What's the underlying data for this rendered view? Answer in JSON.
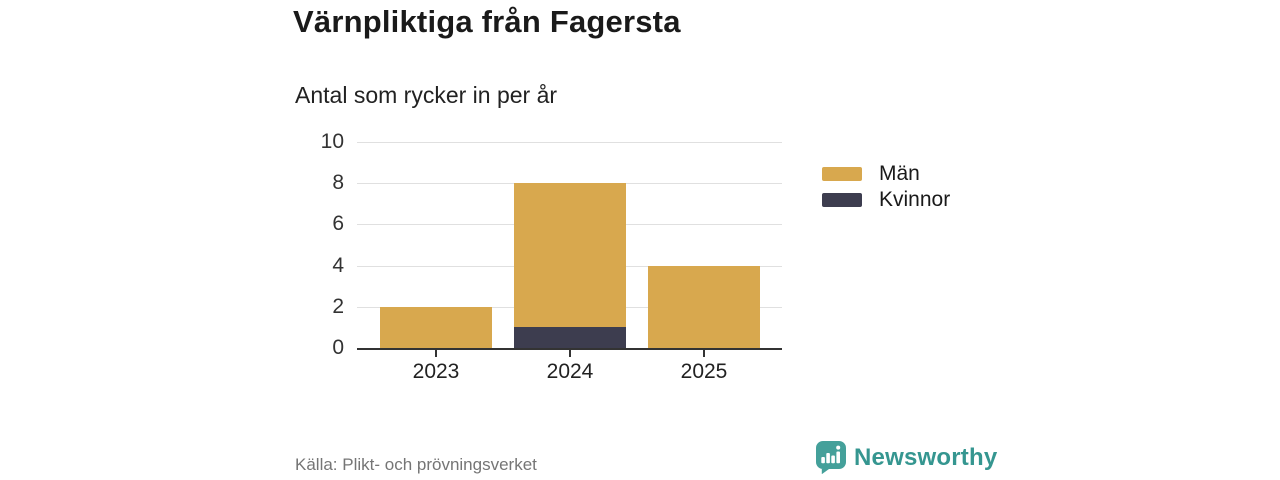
{
  "header": {
    "title": "Värnpliktiga från Fagersta",
    "subtitle": "Antal som rycker in per år"
  },
  "chart_data": {
    "type": "bar",
    "stacked": true,
    "categories": [
      "2023",
      "2024",
      "2025"
    ],
    "series": [
      {
        "name": "Män",
        "color": "#D8A84E",
        "values": [
          2,
          7,
          4
        ]
      },
      {
        "name": "Kvinnor",
        "color": "#3D3D4F",
        "values": [
          0,
          1,
          0
        ]
      }
    ],
    "stack_bottom_to_top": [
      "Kvinnor",
      "Män"
    ],
    "stack_totals": [
      2,
      8,
      4
    ],
    "title": "Värnpliktiga från Fagersta",
    "subtitle": "Antal som rycker in per år",
    "xlabel": "",
    "ylabel": "",
    "ylim": [
      0,
      10
    ],
    "yticks": [
      0,
      2,
      4,
      6,
      8,
      10
    ],
    "grid": true,
    "legend_position": "right"
  },
  "footer": {
    "source": "Källa: Plikt- och prövningsverket",
    "brand": "Newsworthy"
  },
  "colors": {
    "bar_men": "#D8A84E",
    "bar_women": "#3D3D4F",
    "axis": "#333333",
    "gridline": "#E0E0E0",
    "title_text": "#1A1A1A",
    "source_text": "#757575",
    "brand_teal": "#359690",
    "background": "#FFFFFF"
  }
}
